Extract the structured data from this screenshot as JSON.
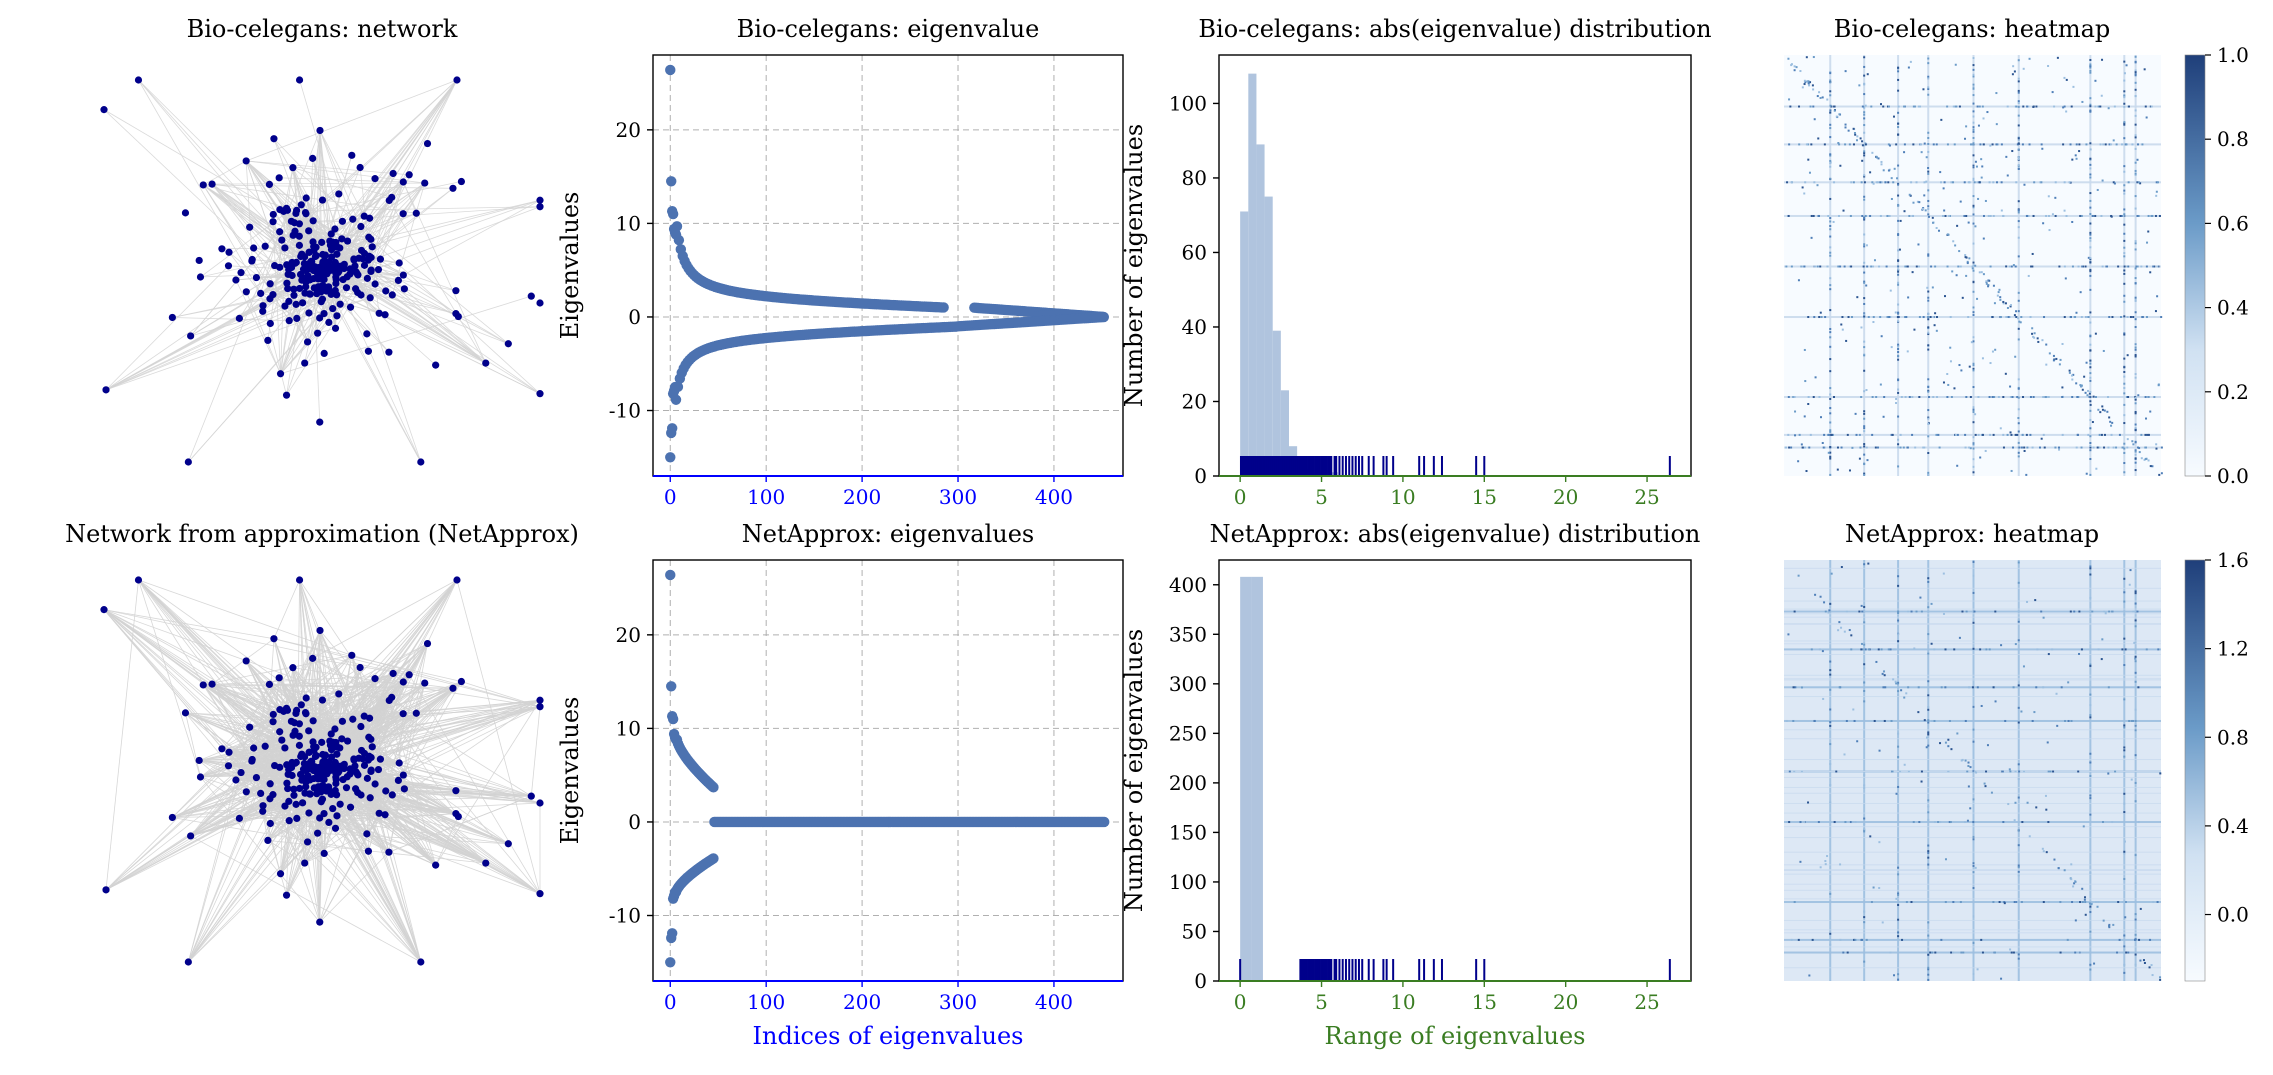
{
  "titles": {
    "r1c1": "Bio-celegans: network",
    "r1c2": "Bio-celegans: eigenvalue",
    "r1c3": "Bio-celegans: abs(eigenvalue) distribution",
    "r1c4": "Bio-celegans: heatmap",
    "r2c1": "Network from approximation (NetApprox)",
    "r2c2": "NetApprox: eigenvalues",
    "r2c3": "NetApprox: abs(eigenvalue) distribution",
    "r2c4": "NetApprox: heatmap"
  },
  "colors": {
    "node": "#00008b",
    "edge": "#d3d3d3",
    "scatter": "#4c72b0",
    "hist": "#b0c4de",
    "rug": "#00008b",
    "axis_blue": "#0000ff",
    "axis_green": "#3a7d22",
    "grid": "#b0b0b0"
  },
  "chart_data": [
    {
      "type": "scatter",
      "title": "Bio-celegans: eigenvalue",
      "xlabel": "",
      "ylabel": "Eigenvalues",
      "xlim": [
        -18,
        472
      ],
      "ylim": [
        -17,
        28
      ],
      "xticks": [
        0,
        100,
        200,
        300,
        400
      ],
      "yticks": [
        -10,
        0,
        10,
        20
      ],
      "ytick_labels": [
        "-10",
        "0",
        "10",
        "20"
      ],
      "grid": true,
      "n": 453,
      "top_values": [
        26.4,
        14.5,
        11.3,
        11.0,
        9.4,
        9.0,
        8.8
      ],
      "bottom_values": [
        -15.0,
        -12.4,
        -11.9,
        -8.2,
        -7.9,
        -7.5
      ],
      "bulk_pos_at_300": 1.0,
      "bulk_neg_at_300": -1.0,
      "gap_range": [
        287,
        315
      ]
    },
    {
      "type": "scatter",
      "title": "NetApprox: eigenvalues",
      "xlabel": "Indices of eigenvalues",
      "ylabel": "Eigenvalues",
      "xlim": [
        -18,
        472
      ],
      "ylim": [
        -17,
        28
      ],
      "xticks": [
        0,
        100,
        200,
        300,
        400
      ],
      "yticks": [
        -10,
        0,
        10,
        20
      ],
      "ytick_labels": [
        "-10",
        "0",
        "10",
        "20"
      ],
      "grid": true,
      "n": 453,
      "rank_cutoff": 45,
      "top_values": [
        26.4,
        14.5,
        11.3,
        11.0,
        9.4,
        9.0,
        8.8
      ],
      "bottom_values": [
        -15.0,
        -12.4,
        -11.9,
        -8.2,
        -7.9,
        -7.5
      ],
      "tail_pos_end": 3.7,
      "tail_neg_end": -3.9
    },
    {
      "type": "bar",
      "title": "Bio-celegans: abs(eigenvalue) distribution",
      "xlabel": "",
      "ylabel": "Number of eigenvalues",
      "xlim": [
        -1.3,
        27.7
      ],
      "ylim": [
        0,
        113
      ],
      "xticks": [
        0,
        5,
        10,
        15,
        20,
        25
      ],
      "yticks": [
        0,
        20,
        40,
        60,
        80,
        100
      ],
      "bin_edges": [
        0,
        0.5,
        1.0,
        1.5,
        2.0,
        2.5,
        3.0,
        3.5,
        4.0,
        4.5,
        5.0,
        5.5,
        6.0
      ],
      "values": [
        71,
        108,
        89,
        75,
        39,
        23,
        8,
        4,
        2,
        1,
        1,
        1
      ],
      "rug": [
        26.4,
        15.0,
        14.5,
        12.4,
        11.9,
        11.3,
        11.0,
        9.4,
        9.0,
        8.8,
        8.2,
        7.9,
        7.5,
        7.3,
        7.1,
        6.9,
        6.7,
        6.5,
        6.3,
        6.1,
        5.9,
        5.8,
        5.6,
        5.5,
        5.4,
        5.3,
        5.2,
        5.1,
        5.0,
        4.9,
        4.8,
        4.7,
        4.6,
        4.5,
        4.4,
        4.3,
        4.2,
        4.1,
        4.0,
        3.9,
        3.8,
        3.7
      ]
    },
    {
      "type": "bar",
      "title": "NetApprox: abs(eigenvalue) distribution",
      "xlabel": "Range of eigenvalues",
      "ylabel": "Number of eigenvalues",
      "xlim": [
        -1.3,
        27.7
      ],
      "ylim": [
        0,
        425
      ],
      "xticks": [
        0,
        5,
        10,
        15,
        20,
        25
      ],
      "yticks": [
        0,
        50,
        100,
        150,
        200,
        250,
        300,
        350,
        400
      ],
      "bin_edges": [
        0,
        0.7,
        1.4
      ],
      "values": [
        408,
        408
      ],
      "rug": [
        0.0,
        26.4,
        15.0,
        14.5,
        12.4,
        11.9,
        11.3,
        11.0,
        9.4,
        9.0,
        8.8,
        8.2,
        7.9,
        7.5,
        7.3,
        7.1,
        6.9,
        6.7,
        6.5,
        6.3,
        6.1,
        5.9,
        5.8,
        5.6,
        5.5,
        5.4,
        5.3,
        5.2,
        5.1,
        5.0,
        4.9,
        4.8,
        4.7,
        4.6,
        4.5,
        4.4,
        4.3,
        4.2,
        4.1,
        4.0,
        3.9,
        3.8,
        3.7
      ]
    },
    {
      "type": "heatmap",
      "title": "Bio-celegans: heatmap",
      "colorbar_ticks": [
        0.0,
        0.2,
        0.4,
        0.6,
        0.8,
        1.0
      ],
      "colorbar_labels": [
        "0.0",
        "0.2",
        "0.4",
        "0.6",
        "0.8",
        "1.0"
      ],
      "vmin": 0.0,
      "vmax": 1.0
    },
    {
      "type": "heatmap",
      "title": "NetApprox: heatmap",
      "colorbar_ticks": [
        0.0,
        0.4,
        0.8,
        1.2,
        1.6
      ],
      "colorbar_labels": [
        "0.0",
        "0.4",
        "0.8",
        "1.2",
        "1.6"
      ],
      "vmin": -0.3,
      "vmax": 1.6
    }
  ]
}
